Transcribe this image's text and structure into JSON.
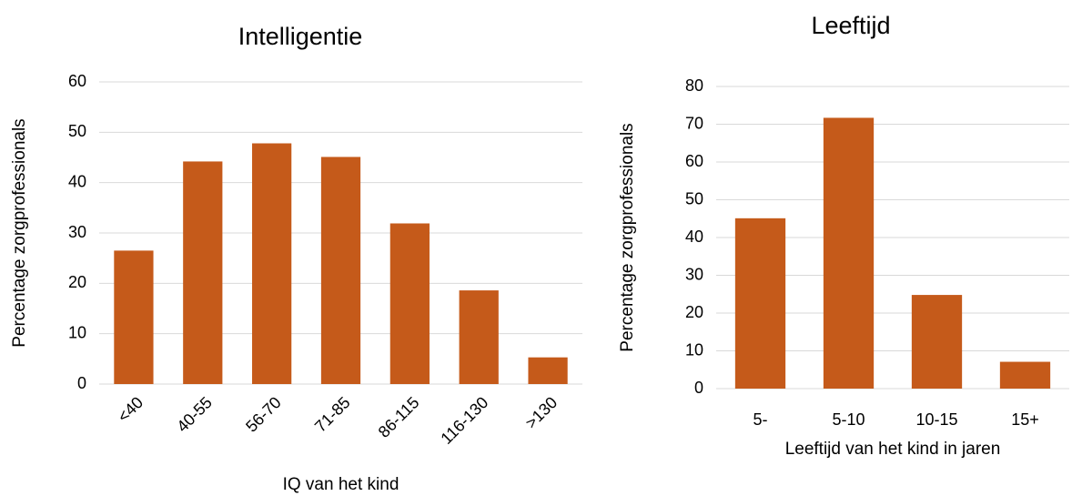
{
  "chart_data": [
    {
      "type": "bar",
      "title": "Intelligentie",
      "x_label": "IQ van het kind",
      "y_label": "Percentage zorgprofessionals",
      "categories": [
        "<40",
        "40-55",
        "56-70",
        "71-85",
        "86-115",
        "116-130",
        ">130"
      ],
      "values": [
        26.5,
        44.2,
        47.8,
        45.1,
        31.9,
        18.6,
        5.3
      ],
      "color": "#c55a1a",
      "ylim": [
        0,
        60
      ],
      "yticks": [
        0,
        10,
        20,
        30,
        40,
        50,
        60
      ],
      "grid": true
    },
    {
      "type": "bar",
      "title": "Leeftijd",
      "x_label": "Leeftijd van het kind in jaren",
      "y_label": "Percentage zorgprofessionals",
      "categories": [
        "5-",
        "5-10",
        "10-15",
        "15+"
      ],
      "values": [
        45.1,
        71.7,
        24.8,
        7.1
      ],
      "color": "#c55a1a",
      "ylim": [
        0,
        80
      ],
      "yticks": [
        0,
        10,
        20,
        30,
        40,
        50,
        60,
        70,
        80
      ],
      "grid": true
    }
  ]
}
